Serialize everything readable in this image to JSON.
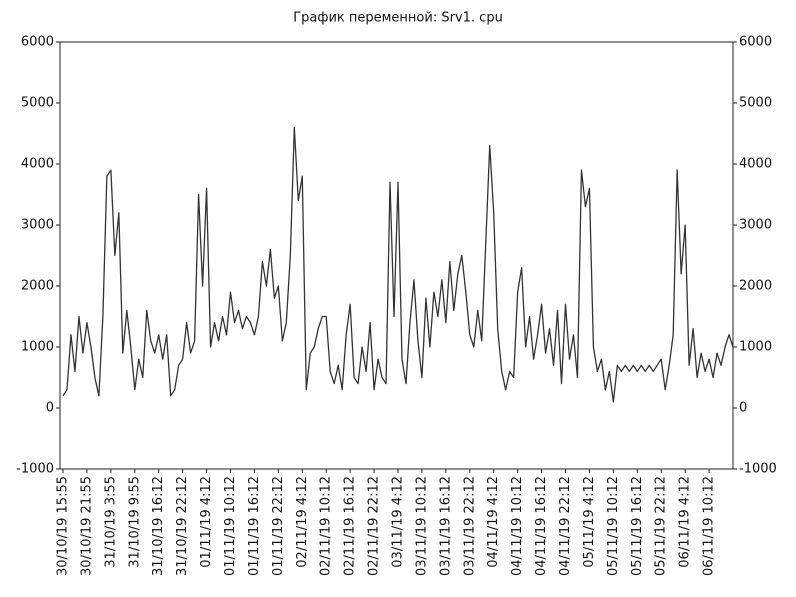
{
  "chart_data": {
    "type": "line",
    "title": "График переменной: Srv1. cpu",
    "categories": [
      "30/10/19 15:55",
      null,
      null,
      null,
      null,
      null,
      "30/10/19 21:55",
      null,
      null,
      null,
      null,
      null,
      "31/10/19 3:55",
      null,
      null,
      null,
      null,
      null,
      "31/10/19 9:55",
      null,
      null,
      null,
      null,
      null,
      "31/10/19 16:12",
      null,
      null,
      null,
      null,
      null,
      "31/10/19 22:12",
      null,
      null,
      null,
      null,
      null,
      "01/11/19 4:12",
      null,
      null,
      null,
      null,
      null,
      "01/11/19 10:12",
      null,
      null,
      null,
      null,
      null,
      "01/11/19 16:12",
      null,
      null,
      null,
      null,
      null,
      "01/11/19 22:12",
      null,
      null,
      null,
      null,
      null,
      "02/11/19 4:12",
      null,
      null,
      null,
      null,
      null,
      "02/11/19 10:12",
      null,
      null,
      null,
      null,
      null,
      "02/11/19 16:12",
      null,
      null,
      null,
      null,
      null,
      "02/11/19 22:12",
      null,
      null,
      null,
      null,
      null,
      "03/11/19 4:12",
      null,
      null,
      null,
      null,
      null,
      "03/11/19 10:12",
      null,
      null,
      null,
      null,
      null,
      "03/11/19 16:12",
      null,
      null,
      null,
      null,
      null,
      "03/11/19 22:12",
      null,
      null,
      null,
      null,
      null,
      "04/11/19 4:12",
      null,
      null,
      null,
      null,
      null,
      "04/11/19 10:12",
      null,
      null,
      null,
      null,
      null,
      "04/11/19 16:12",
      null,
      null,
      null,
      null,
      null,
      "04/11/19 22:12",
      null,
      null,
      null,
      null,
      null,
      "05/11/19 4:12",
      null,
      null,
      null,
      null,
      null,
      "05/11/19 10:12",
      null,
      null,
      null,
      null,
      null,
      "05/11/19 16:12",
      null,
      null,
      null,
      null,
      null,
      "05/11/19 22:12",
      null,
      null,
      null,
      null,
      null,
      "06/11/19 4:12",
      null,
      null,
      null,
      null,
      null,
      "06/11/19 10:12",
      null,
      null,
      null,
      null,
      null,
      null
    ],
    "values": [
      200,
      300,
      1200,
      600,
      1500,
      900,
      1400,
      1000,
      500,
      200,
      1500,
      3800,
      3900,
      2500,
      3200,
      900,
      1600,
      1000,
      300,
      800,
      500,
      1600,
      1100,
      900,
      1200,
      800,
      1200,
      200,
      300,
      700,
      800,
      1400,
      900,
      1100,
      3500,
      2000,
      3600,
      1000,
      1400,
      1100,
      1500,
      1200,
      1900,
      1400,
      1600,
      1300,
      1500,
      1400,
      1200,
      1500,
      2400,
      2000,
      2600,
      1800,
      2000,
      1100,
      1400,
      2500,
      4600,
      3400,
      3800,
      300,
      900,
      1000,
      1300,
      1500,
      1500,
      600,
      400,
      700,
      300,
      1200,
      1700,
      500,
      400,
      1000,
      600,
      1400,
      300,
      800,
      500,
      400,
      3700,
      1500,
      3700,
      800,
      400,
      1400,
      2100,
      1100,
      500,
      1800,
      1000,
      1900,
      1500,
      2100,
      1400,
      2400,
      1600,
      2200,
      2500,
      1900,
      1200,
      1000,
      1600,
      1100,
      2700,
      4300,
      3200,
      1300,
      600,
      300,
      600,
      500,
      1900,
      2300,
      1000,
      1500,
      800,
      1200,
      1700,
      900,
      1300,
      700,
      1600,
      400,
      1700,
      800,
      1200,
      500,
      3900,
      3300,
      3600,
      1000,
      600,
      800,
      300,
      600,
      100,
      700,
      600,
      700,
      600,
      700,
      600,
      700,
      600,
      700,
      600,
      700,
      800,
      300,
      700,
      1200,
      3900,
      2200,
      3000,
      700,
      1300,
      500,
      900,
      600,
      800,
      500,
      900,
      700,
      1000,
      1200,
      1000
    ],
    "color": "#333333",
    "ylim": [
      -1000,
      6000
    ],
    "yticks": [
      -1000,
      0,
      1000,
      2000,
      3000,
      4000,
      5000,
      6000
    ],
    "grid": false
  }
}
